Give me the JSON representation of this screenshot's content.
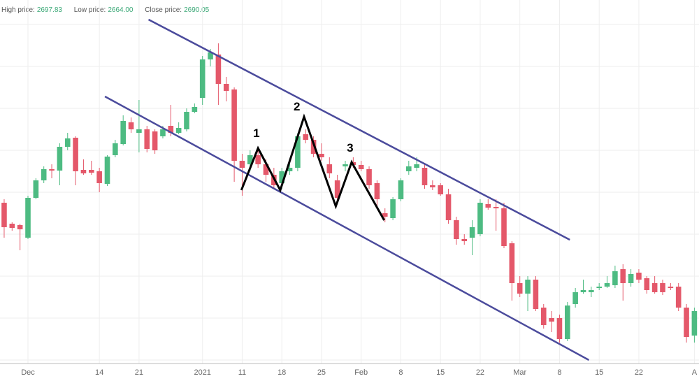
{
  "header": {
    "high_label": "High price:",
    "high_value": "2697.83",
    "low_label": "Low price:",
    "low_value": "2664.00",
    "close_label": "Close price:",
    "close_value": "2690.05"
  },
  "chart_data": {
    "type": "candlestick",
    "categories": [
      null,
      null,
      null,
      "Dec",
      null,
      null,
      null,
      null,
      null,
      null,
      null,
      null,
      "14",
      null,
      null,
      null,
      null,
      "21",
      null,
      null,
      null,
      null,
      null,
      null,
      null,
      "2021",
      null,
      null,
      null,
      null,
      "11",
      null,
      null,
      null,
      null,
      "18",
      null,
      null,
      null,
      null,
      "25",
      null,
      null,
      null,
      null,
      "Feb",
      null,
      null,
      null,
      null,
      "8",
      null,
      null,
      null,
      null,
      "15",
      null,
      null,
      null,
      null,
      "22",
      null,
      null,
      null,
      null,
      "Mar",
      null,
      null,
      null,
      null,
      "8",
      null,
      null,
      null,
      null,
      "15",
      null,
      null,
      null,
      null,
      "22",
      null,
      null,
      null,
      null,
      null,
      null,
      "A"
    ],
    "open": [
      2510,
      2480,
      2478,
      2460,
      2517,
      2542,
      2558,
      2556,
      2590,
      2603,
      2557,
      2557,
      2555,
      2537,
      2578,
      2594,
      2625,
      2610,
      2615,
      2612,
      2605,
      2620,
      2610,
      2615,
      2640,
      2660,
      2715,
      2722,
      2680,
      2672,
      2570,
      2565,
      2578,
      2565,
      2550,
      2538,
      2555,
      2560,
      2608,
      2600,
      2580,
      2565,
      2542,
      2562,
      2568,
      2564,
      2558,
      2538,
      2495,
      2488,
      2515,
      2555,
      2560,
      2560,
      2535,
      2535,
      2522,
      2485,
      2458,
      2460,
      2465,
      2508,
      2504,
      2502,
      2452,
      2395,
      2380,
      2400,
      2360,
      2345,
      2345,
      2315,
      2365,
      2382,
      2382,
      2388,
      2390,
      2392,
      2415,
      2395,
      2410,
      2402,
      2395,
      2395,
      2390,
      2390,
      2360,
      2320
    ],
    "high": [
      2515,
      2482,
      2480,
      2520,
      2545,
      2562,
      2565,
      2595,
      2610,
      2605,
      2572,
      2570,
      2560,
      2578,
      2600,
      2635,
      2632,
      2657,
      2620,
      2615,
      2620,
      2650,
      2625,
      2645,
      2652,
      2720,
      2730,
      2738,
      2690,
      2675,
      2580,
      2585,
      2590,
      2572,
      2560,
      2560,
      2565,
      2610,
      2615,
      2605,
      2595,
      2575,
      2550,
      2570,
      2575,
      2570,
      2562,
      2542,
      2502,
      2518,
      2545,
      2570,
      2575,
      2565,
      2542,
      2538,
      2530,
      2490,
      2465,
      2485,
      2515,
      2515,
      2515,
      2510,
      2455,
      2405,
      2405,
      2405,
      2365,
      2355,
      2350,
      2368,
      2388,
      2400,
      2390,
      2395,
      2405,
      2420,
      2422,
      2415,
      2415,
      2405,
      2405,
      2400,
      2395,
      2395,
      2365,
      2360
    ],
    "low": [
      2460,
      2470,
      2442,
      2458,
      2515,
      2538,
      2545,
      2535,
      2585,
      2535,
      2550,
      2550,
      2525,
      2534,
      2575,
      2592,
      2610,
      2582,
      2582,
      2580,
      2602,
      2605,
      2608,
      2612,
      2638,
      2650,
      2705,
      2650,
      2655,
      2540,
      2520,
      2555,
      2560,
      2540,
      2530,
      2530,
      2550,
      2555,
      2595,
      2575,
      2570,
      2545,
      2510,
      2555,
      2560,
      2555,
      2530,
      2505,
      2482,
      2485,
      2512,
      2550,
      2555,
      2530,
      2528,
      2520,
      2480,
      2450,
      2450,
      2435,
      2462,
      2500,
      2470,
      2445,
      2370,
      2375,
      2355,
      2355,
      2330,
      2325,
      2310,
      2312,
      2360,
      2380,
      2375,
      2385,
      2388,
      2388,
      2370,
      2390,
      2395,
      2380,
      2380,
      2378,
      2385,
      2355,
      2310,
      2310
    ],
    "close": [
      2475,
      2474,
      2472,
      2517,
      2542,
      2558,
      2556,
      2590,
      2602,
      2555,
      2552,
      2553,
      2538,
      2576,
      2595,
      2627,
      2615,
      2615,
      2587,
      2585,
      2615,
      2610,
      2617,
      2640,
      2647,
      2715,
      2725,
      2680,
      2670,
      2570,
      2560,
      2578,
      2565,
      2550,
      2535,
      2555,
      2560,
      2605,
      2600,
      2580,
      2575,
      2552,
      2517,
      2565,
      2564,
      2558,
      2535,
      2515,
      2490,
      2515,
      2542,
      2562,
      2565,
      2535,
      2532,
      2522,
      2485,
      2458,
      2455,
      2475,
      2510,
      2503,
      2502,
      2448,
      2395,
      2380,
      2400,
      2358,
      2335,
      2340,
      2315,
      2363,
      2382,
      2385,
      2385,
      2390,
      2395,
      2412,
      2395,
      2408,
      2400,
      2385,
      2382,
      2382,
      2388,
      2360,
      2318,
      2355
    ],
    "up_color": "#4dbb82",
    "down_color": "#e4586a",
    "ylim": [
      2280,
      2800
    ],
    "grid": true,
    "trendlines": [
      {
        "color": "#4b4b9c",
        "points": [
          [
            18.2,
            2772
          ],
          [
            71.3,
            2457
          ]
        ]
      },
      {
        "color": "#4b4b9c",
        "points": [
          [
            12.7,
            2662
          ],
          [
            73.7,
            2285
          ]
        ]
      },
      {
        "color": "#000000",
        "points": [
          [
            29.9,
            2528
          ],
          [
            32.0,
            2588
          ],
          [
            34.8,
            2528
          ],
          [
            37.8,
            2633
          ],
          [
            41.8,
            2505
          ],
          [
            43.8,
            2568
          ],
          [
            47.9,
            2485
          ]
        ]
      }
    ],
    "annotations": [
      {
        "text": "1",
        "x": 31.8,
        "y": 2604
      },
      {
        "text": "2",
        "x": 36.9,
        "y": 2642
      },
      {
        "text": "3",
        "x": 43.6,
        "y": 2583
      }
    ]
  }
}
